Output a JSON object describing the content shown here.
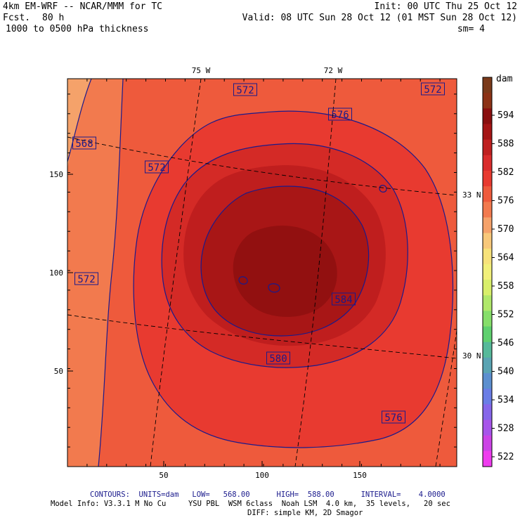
{
  "header": {
    "model": "4km EM-WRF -- NCAR/MMM for TC",
    "fcst_label": "Fcst.",
    "fcst_value": "80 h",
    "field": "1000 to 0500 hPa thickness",
    "init": "Init: 00 UTC Thu 25 Oct 12",
    "valid": "Valid: 08 UTC Sun 28 Oct 12 (01 MST Sun 28 Oct 12)",
    "smooth": "sm= 4"
  },
  "map": {
    "x_ticks": [
      "50",
      "100",
      "150"
    ],
    "y_ticks": [
      "150",
      "100",
      "50"
    ],
    "lon_labels": [
      "75 W",
      "72 W"
    ],
    "lat_labels": [
      "33 N",
      "30 N"
    ],
    "contour_labels": [
      {
        "text": "572"
      },
      {
        "text": "572"
      },
      {
        "text": "576"
      },
      {
        "text": "568"
      },
      {
        "text": "572"
      },
      {
        "text": "572"
      },
      {
        "text": "584"
      },
      {
        "text": "580"
      },
      {
        "text": "576"
      }
    ],
    "fill_colors": [
      "#f5a26a",
      "#f27a4e",
      "#ee5a3c",
      "#e83a30",
      "#d42a26",
      "#bf1e1e",
      "#a81616",
      "#921010"
    ],
    "contour_color": "#1a1a8c"
  },
  "colorbar": {
    "unit": "dam",
    "labels": [
      "594",
      "588",
      "582",
      "576",
      "570",
      "564",
      "558",
      "552",
      "546",
      "540",
      "534",
      "528",
      "522"
    ],
    "colors": [
      "#7a3a1a",
      "#8c3216",
      "#8a0f0f",
      "#a51515",
      "#bf2020",
      "#d92c2c",
      "#e83a30",
      "#ee5a3c",
      "#f27a4e",
      "#f5a26a",
      "#f8c87a",
      "#f7e27a",
      "#f2f07a",
      "#d8ef6a",
      "#b0e86a",
      "#86de6a",
      "#5fd06f",
      "#56b99a",
      "#5aa4b3",
      "#5c8fcf",
      "#6a7de6",
      "#8666ea",
      "#a755ea",
      "#cc44e6",
      "#ee3cee"
    ]
  },
  "footer": {
    "contours": "CONTOURS:  UNITS=dam   LOW=   568.00      HIGH=  588.00      INTERVAL=    4.0000",
    "model_info": "Model Info: V3.3.1 M No Cu     YSU PBL  WSM 6class  Noah LSM  4.0 km,  35 levels,   20 sec",
    "diff": "DIFF: simple KM, 2D Smagor"
  }
}
